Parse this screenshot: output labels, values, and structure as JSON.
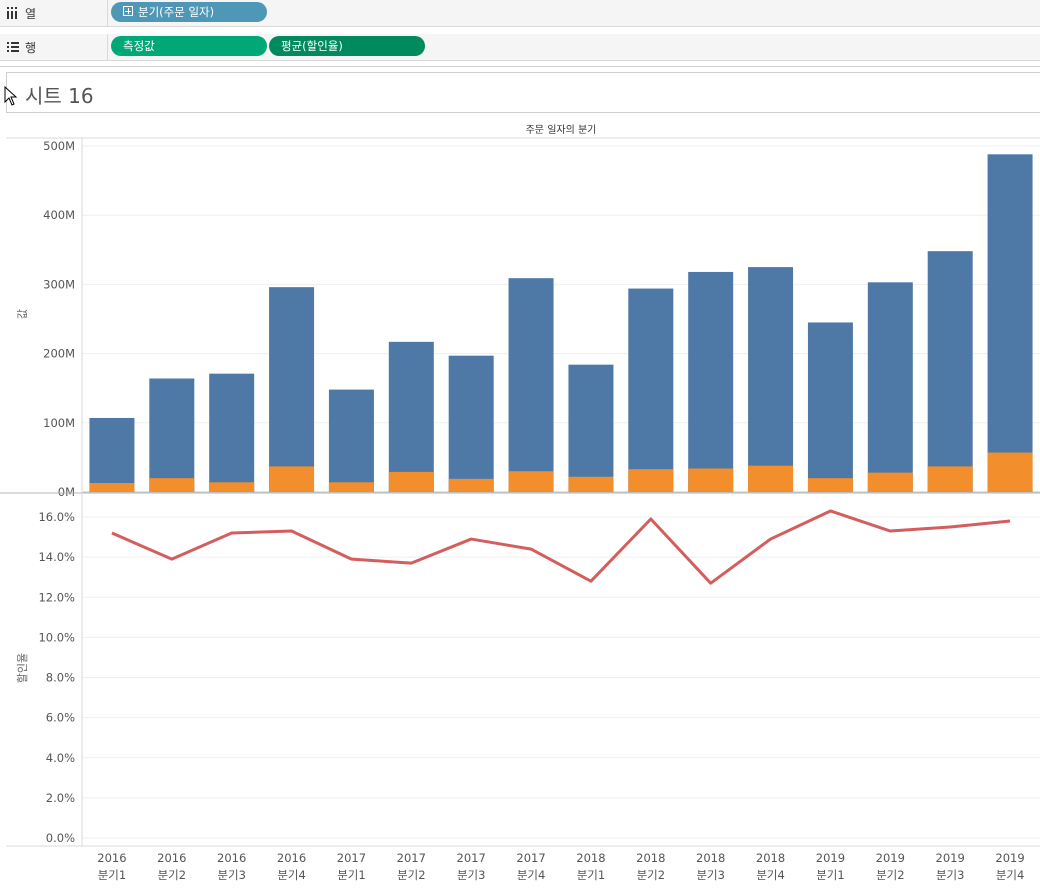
{
  "shelves": {
    "columns": {
      "label": "열",
      "pill": "분기(주문 일자)"
    },
    "rows": {
      "label": "행",
      "pills": [
        "측정값",
        "평균(할인율)"
      ]
    }
  },
  "sheet": {
    "title": "시트 16"
  },
  "colors": {
    "bar_primary": "#4e79a7",
    "bar_secondary": "#f28e2b",
    "line": "#d45d5d",
    "pill_blue": "#4f97b6",
    "pill_green": "#00a878",
    "pill_dark_green": "#008a5e"
  },
  "chart_data": [
    {
      "type": "bar",
      "stacked": true,
      "header": "주문 일자의 분기",
      "ylabel": "값",
      "ylim": [
        0,
        500000000
      ],
      "yticks": [
        "0M",
        "100M",
        "200M",
        "300M",
        "400M",
        "500M"
      ],
      "categories": [
        [
          "2016",
          "분기1"
        ],
        [
          "2016",
          "분기2"
        ],
        [
          "2016",
          "분기3"
        ],
        [
          "2016",
          "분기4"
        ],
        [
          "2017",
          "분기1"
        ],
        [
          "2017",
          "분기2"
        ],
        [
          "2017",
          "분기3"
        ],
        [
          "2017",
          "분기4"
        ],
        [
          "2018",
          "분기1"
        ],
        [
          "2018",
          "분기2"
        ],
        [
          "2018",
          "분기3"
        ],
        [
          "2018",
          "분기4"
        ],
        [
          "2019",
          "분기1"
        ],
        [
          "2019",
          "분기2"
        ],
        [
          "2019",
          "분기3"
        ],
        [
          "2019",
          "분기4"
        ]
      ],
      "series": [
        {
          "values": [
            107000000,
            164000000,
            171000000,
            296000000,
            148000000,
            217000000,
            197000000,
            309000000,
            184000000,
            294000000,
            318000000,
            325000000,
            245000000,
            303000000,
            348000000,
            488000000
          ]
        },
        {
          "values": [
            13000000,
            20000000,
            14000000,
            37000000,
            14000000,
            29000000,
            19000000,
            30000000,
            22000000,
            33000000,
            34000000,
            38000000,
            20000000,
            28000000,
            37000000,
            57000000
          ]
        }
      ],
      "grid": true
    },
    {
      "type": "line",
      "ylabel": "할인율",
      "ylim": [
        0,
        17
      ],
      "yticks": [
        "0.0%",
        "2.0%",
        "4.0%",
        "6.0%",
        "8.0%",
        "10.0%",
        "12.0%",
        "14.0%",
        "16.0%"
      ],
      "values": [
        15.2,
        13.9,
        15.2,
        15.3,
        13.9,
        13.7,
        14.9,
        14.4,
        12.8,
        15.9,
        12.7,
        14.9,
        16.3,
        15.3,
        15.5,
        15.8
      ],
      "grid": true
    }
  ]
}
